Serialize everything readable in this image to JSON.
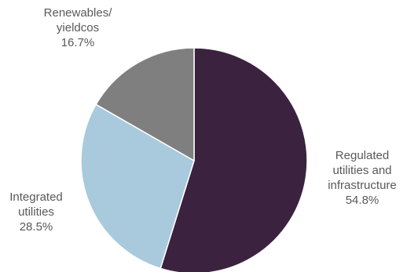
{
  "chart_data": {
    "type": "pie",
    "title": "",
    "slices": [
      {
        "label_lines": [
          "Regulated",
          "utilities and",
          "infrastructure"
        ],
        "value_text": "54.8%",
        "value": 54.8,
        "color": "#3b223f"
      },
      {
        "label_lines": [
          "Integrated",
          "utilities"
        ],
        "value_text": "28.5%",
        "value": 28.5,
        "color": "#a9cadd"
      },
      {
        "label_lines": [
          "Renewables/",
          "yieldcos"
        ],
        "value_text": "16.7%",
        "value": 16.7,
        "color": "#7f7f7f"
      }
    ],
    "start_angle_deg": 0,
    "direction": "clockwise",
    "legend": "none"
  }
}
